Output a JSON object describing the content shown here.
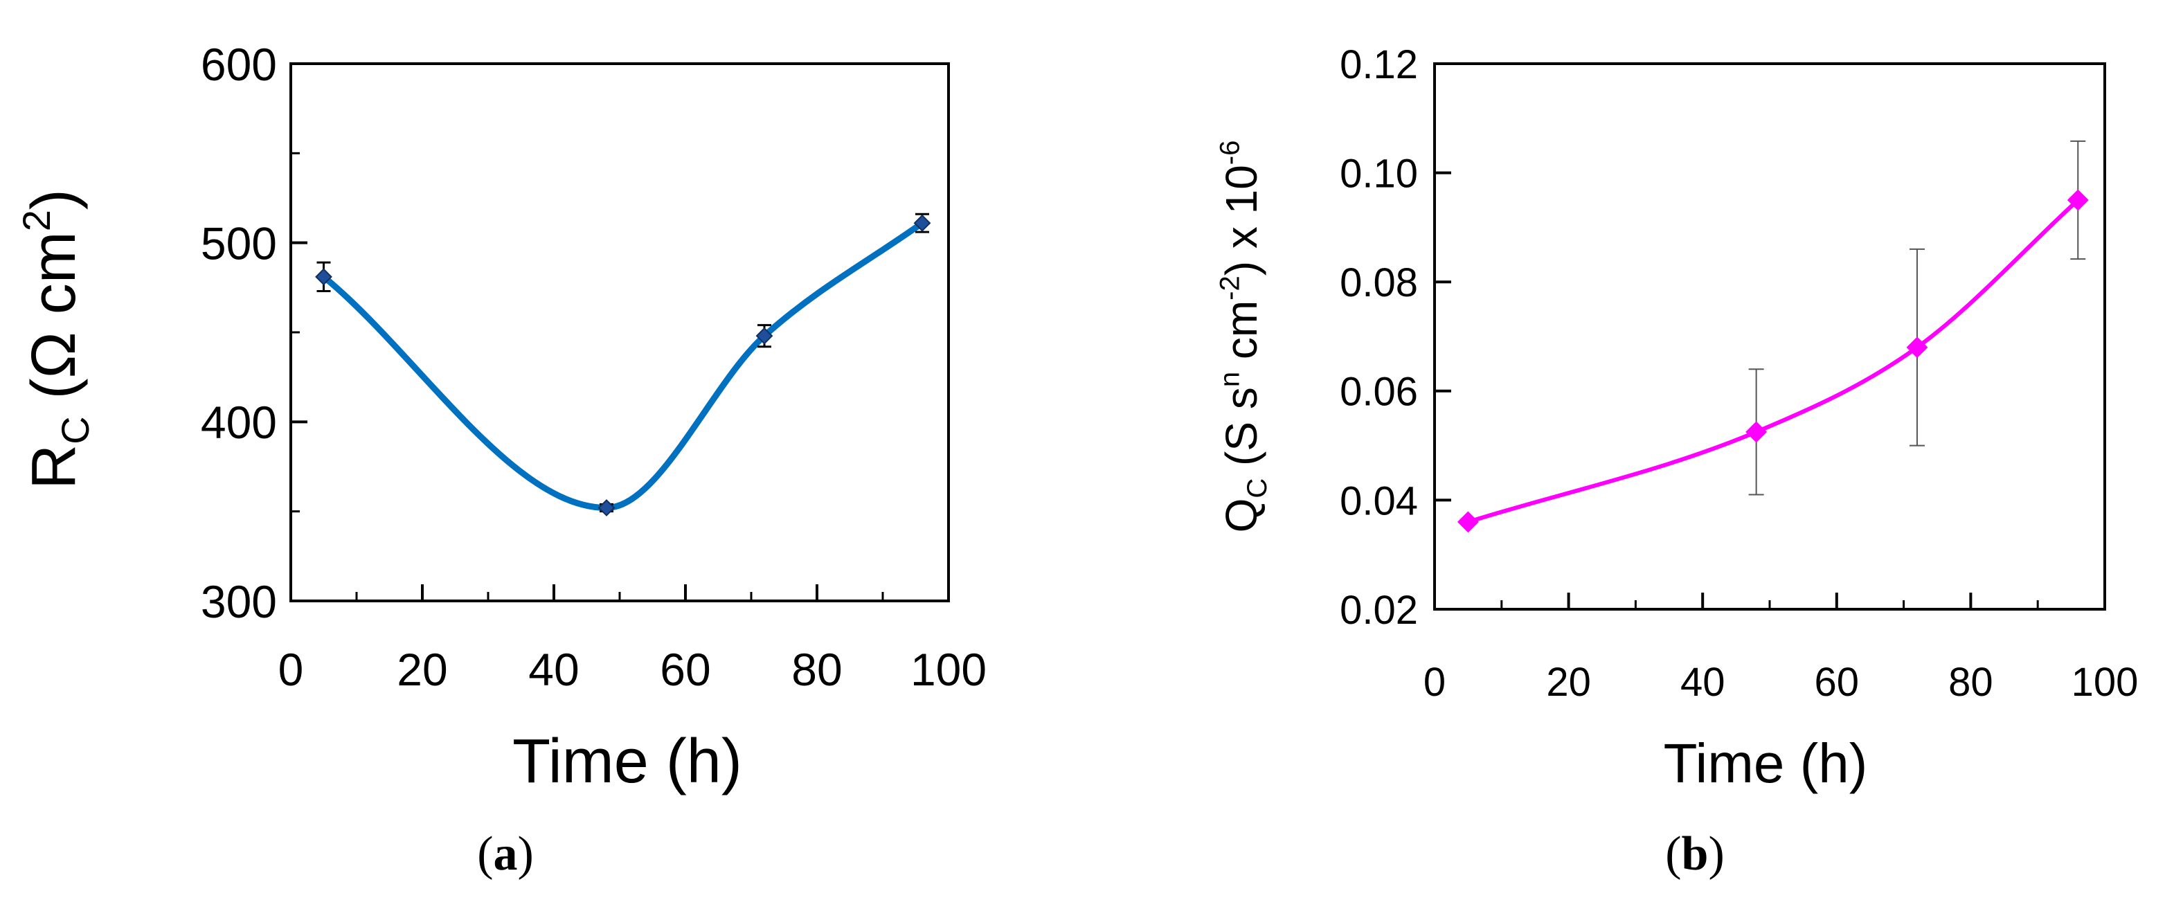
{
  "chart_data": [
    {
      "type": "line",
      "panel": "a",
      "xlabel": "Time (h)",
      "ylabel": "R_C (Ω cm²)",
      "ylabel_parts": {
        "base": "R",
        "sub": "C",
        "unit_open": " (Ω cm",
        "sup": "2",
        "unit_close": ")"
      },
      "xlim": [
        0,
        100
      ],
      "ylim": [
        300,
        600
      ],
      "xticks": [
        "0",
        "20",
        "40",
        "60",
        "80",
        "100"
      ],
      "yticks": [
        "300",
        "400",
        "500",
        "600"
      ],
      "x": [
        5,
        48,
        72,
        96
      ],
      "y": [
        481,
        352,
        448,
        511
      ],
      "error": [
        8,
        2,
        6,
        5
      ],
      "line_color": "#0070C0",
      "marker_color": "#1F4E9A",
      "marker": "diamond",
      "smooth": true
    },
    {
      "type": "line",
      "panel": "b",
      "xlabel": "Time (h)",
      "ylabel": "Q_C (S s^n cm^-2) x 10^-6",
      "ylabel_parts": {
        "base": "Q",
        "sub": "C",
        "p1": " (S s",
        "sup1": "n",
        "p2": " cm",
        "sup2": "-2",
        "p3": ") x 10",
        "sup3": "-6"
      },
      "xlim": [
        0,
        100
      ],
      "ylim": [
        0.02,
        0.12
      ],
      "xticks": [
        "0",
        "20",
        "40",
        "60",
        "80",
        "100"
      ],
      "yticks": [
        "0.02",
        "0.04",
        "0.06",
        "0.08",
        "0.10",
        "0.12"
      ],
      "x": [
        5,
        48,
        72,
        96
      ],
      "y": [
        0.036,
        0.0525,
        0.068,
        0.095
      ],
      "error": [
        0.0,
        0.0115,
        0.018,
        0.0108
      ],
      "line_color": "#FF00FF",
      "marker_color": "#FF00FF",
      "marker": "diamond",
      "smooth": true
    }
  ],
  "panel_labels": [
    "(a)",
    "(b)"
  ],
  "panel_label_letters": [
    "a",
    "b"
  ]
}
